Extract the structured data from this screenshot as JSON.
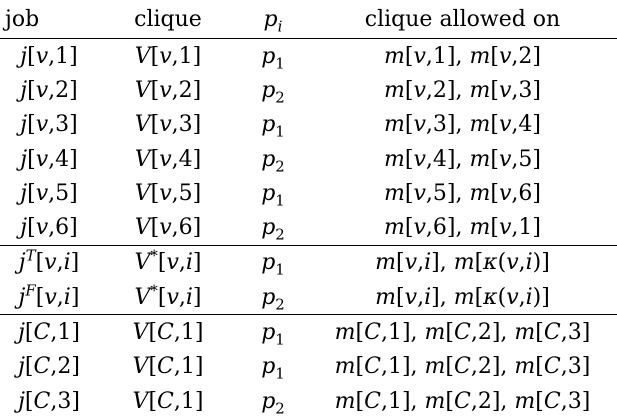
{
  "table": {
    "headers": [
      "job",
      "clique",
      "p_i",
      "clique allowed on"
    ],
    "groups": [
      [
        [
          "j[v,1]",
          "V[v,1]",
          "p_1",
          "m[v,1], m[v,2]"
        ],
        [
          "j[v,2]",
          "V[v,2]",
          "p_2",
          "m[v,2], m[v,3]"
        ],
        [
          "j[v,3]",
          "V[v,3]",
          "p_1",
          "m[v,3], m[v,4]"
        ],
        [
          "j[v,4]",
          "V[v,4]",
          "p_2",
          "m[v,4], m[v,5]"
        ],
        [
          "j[v,5]",
          "V[v,5]",
          "p_1",
          "m[v,5], m[v,6]"
        ],
        [
          "j[v,6]",
          "V[v,6]",
          "p_2",
          "m[v,6], m[v,1]"
        ]
      ],
      [
        [
          "j^T[v,i]",
          "V^*[v,i]",
          "p_1",
          "m[v,i], m[κ(v,i)]"
        ],
        [
          "j^F[v,i]",
          "V^*[v,i]",
          "p_2",
          "m[v,i], m[κ(v,i)]"
        ]
      ],
      [
        [
          "j[C,1]",
          "V[C,1]",
          "p_1",
          "m[C,1], m[C,2], m[C,3]"
        ],
        [
          "j[C,2]",
          "V[C,1]",
          "p_1",
          "m[C,1], m[C,2], m[C,3]"
        ],
        [
          "j[C,3]",
          "V[C,1]",
          "p_2",
          "m[C,1], m[C,2], m[C,3]"
        ]
      ]
    ]
  }
}
